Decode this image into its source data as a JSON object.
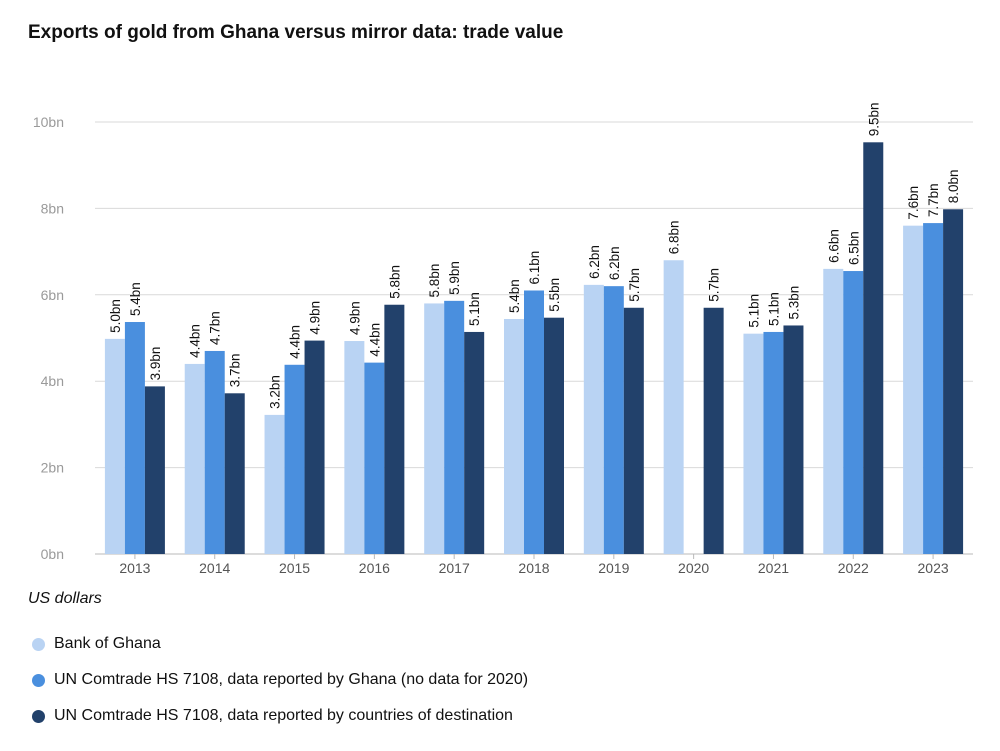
{
  "chart_data": {
    "type": "bar",
    "title": "Exports of gold from Ghana versus mirror data: trade value",
    "ylabel": "US dollars",
    "xlabel": "",
    "ylim": [
      0,
      10
    ],
    "yticks": [
      0,
      2,
      4,
      6,
      8,
      10
    ],
    "ytick_labels": [
      "0bn",
      "2bn",
      "4bn",
      "6bn",
      "8bn",
      "10bn"
    ],
    "categories": [
      "2013",
      "2014",
      "2015",
      "2016",
      "2017",
      "2018",
      "2019",
      "2020",
      "2021",
      "2022",
      "2023"
    ],
    "series": [
      {
        "name": "Bank of Ghana",
        "color": "#b9d3f3",
        "values": [
          4.98,
          4.4,
          3.22,
          4.93,
          5.8,
          5.44,
          6.23,
          6.8,
          5.1,
          6.6,
          7.6
        ],
        "labels": [
          "5.0bn",
          "4.4bn",
          "3.2bn",
          "4.9bn",
          "5.8bn",
          "5.4bn",
          "6.2bn",
          "6.8bn",
          "5.1bn",
          "6.6bn",
          "7.6bn"
        ]
      },
      {
        "name": "UN Comtrade HS 7108, data reported by Ghana (no data for 2020)",
        "color": "#4a8fde",
        "values": [
          5.37,
          4.7,
          4.38,
          4.43,
          5.86,
          6.1,
          6.2,
          null,
          5.14,
          6.55,
          7.66
        ],
        "labels": [
          "5.4bn",
          "4.7bn",
          "4.4bn",
          "4.4bn",
          "5.9bn",
          "6.1bn",
          "6.2bn",
          "",
          "5.1bn",
          "6.5bn",
          "7.7bn"
        ]
      },
      {
        "name": "UN Comtrade HS 7108, data reported by countries of destination",
        "color": "#22416b",
        "values": [
          3.88,
          3.72,
          4.94,
          5.77,
          5.14,
          5.47,
          5.7,
          5.7,
          5.29,
          9.53,
          7.98
        ],
        "labels": [
          "3.9bn",
          "3.7bn",
          "4.9bn",
          "5.8bn",
          "5.1bn",
          "5.5bn",
          "5.7bn",
          "5.7bn",
          "5.3bn",
          "9.5bn",
          "8.0bn"
        ]
      }
    ],
    "legend_position": "bottom-left"
  }
}
